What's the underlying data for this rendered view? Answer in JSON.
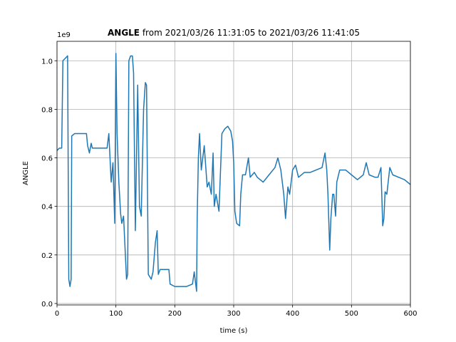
{
  "chart_data": {
    "type": "line",
    "title_parts": [
      {
        "text": "ANGLE",
        "bold": true
      },
      {
        "text": " from 2021/03/26 11:31:05 to 2021/03/26 11:41:05",
        "bold": false
      }
    ],
    "y_offset_label": "1e9",
    "xlabel": "time (s)",
    "ylabel": "ANGLE",
    "xlim": [
      0,
      600
    ],
    "ylim": [
      -0.006,
      1.08
    ],
    "xticks": [
      0,
      100,
      200,
      300,
      400,
      500,
      600
    ],
    "yticks": [
      {
        "value": 0,
        "label": "0.0"
      },
      {
        "value": 0.2,
        "label": "0.2"
      },
      {
        "value": 0.4,
        "label": "0.4"
      },
      {
        "value": 0.6,
        "label": "0.6"
      },
      {
        "value": 0.8,
        "label": "0.8"
      },
      {
        "value": 1.0,
        "label": "1.0"
      }
    ],
    "grid": true,
    "series": [
      {
        "name": "ANGLE",
        "color": "#1f77b4",
        "x": [
          0,
          4,
          8,
          10,
          14,
          18,
          20,
          22,
          24,
          25,
          30,
          40,
          50,
          52,
          55,
          58,
          60,
          70,
          85,
          88,
          90,
          92,
          95,
          98,
          100,
          102,
          105,
          108,
          110,
          113,
          118,
          120,
          122,
          125,
          128,
          130,
          133,
          135,
          137,
          140,
          143,
          147,
          150,
          152,
          155,
          160,
          163,
          167,
          170,
          172,
          175,
          190,
          192,
          200,
          220,
          230,
          233,
          237,
          238,
          240,
          242,
          245,
          250,
          255,
          258,
          262,
          265,
          267,
          270,
          275,
          280,
          285,
          290,
          295,
          298,
          300,
          302,
          305,
          310,
          312,
          315,
          320,
          325,
          328,
          335,
          340,
          350,
          360,
          370,
          375,
          380,
          385,
          388,
          392,
          395,
          400,
          405,
          410,
          420,
          430,
          440,
          450,
          455,
          458,
          460,
          463,
          465,
          468,
          470,
          473,
          475,
          480,
          490,
          500,
          510,
          520,
          525,
          530,
          540,
          545,
          550,
          553,
          555,
          557,
          560,
          565,
          570,
          580,
          590,
          600
        ],
        "values": [
          0.63,
          0.64,
          0.64,
          1.0,
          1.01,
          1.02,
          0.1,
          0.07,
          0.1,
          0.69,
          0.7,
          0.7,
          0.7,
          0.65,
          0.62,
          0.66,
          0.64,
          0.64,
          0.64,
          0.7,
          0.6,
          0.5,
          0.58,
          0.33,
          1.03,
          0.7,
          0.5,
          0.37,
          0.33,
          0.36,
          0.1,
          0.12,
          1.0,
          1.02,
          1.02,
          0.95,
          0.3,
          0.6,
          0.9,
          0.4,
          0.36,
          0.8,
          0.91,
          0.9,
          0.12,
          0.1,
          0.13,
          0.25,
          0.3,
          0.12,
          0.14,
          0.14,
          0.08,
          0.07,
          0.07,
          0.08,
          0.13,
          0.05,
          0.35,
          0.6,
          0.7,
          0.55,
          0.65,
          0.48,
          0.5,
          0.45,
          0.62,
          0.4,
          0.45,
          0.38,
          0.7,
          0.72,
          0.73,
          0.71,
          0.67,
          0.58,
          0.38,
          0.33,
          0.32,
          0.45,
          0.53,
          0.53,
          0.6,
          0.52,
          0.54,
          0.52,
          0.5,
          0.53,
          0.56,
          0.6,
          0.55,
          0.45,
          0.35,
          0.48,
          0.45,
          0.55,
          0.57,
          0.52,
          0.54,
          0.54,
          0.55,
          0.56,
          0.62,
          0.55,
          0.45,
          0.22,
          0.35,
          0.45,
          0.45,
          0.36,
          0.5,
          0.55,
          0.55,
          0.53,
          0.51,
          0.53,
          0.58,
          0.53,
          0.52,
          0.52,
          0.56,
          0.32,
          0.35,
          0.46,
          0.45,
          0.56,
          0.53,
          0.52,
          0.51,
          0.49
        ]
      }
    ]
  }
}
